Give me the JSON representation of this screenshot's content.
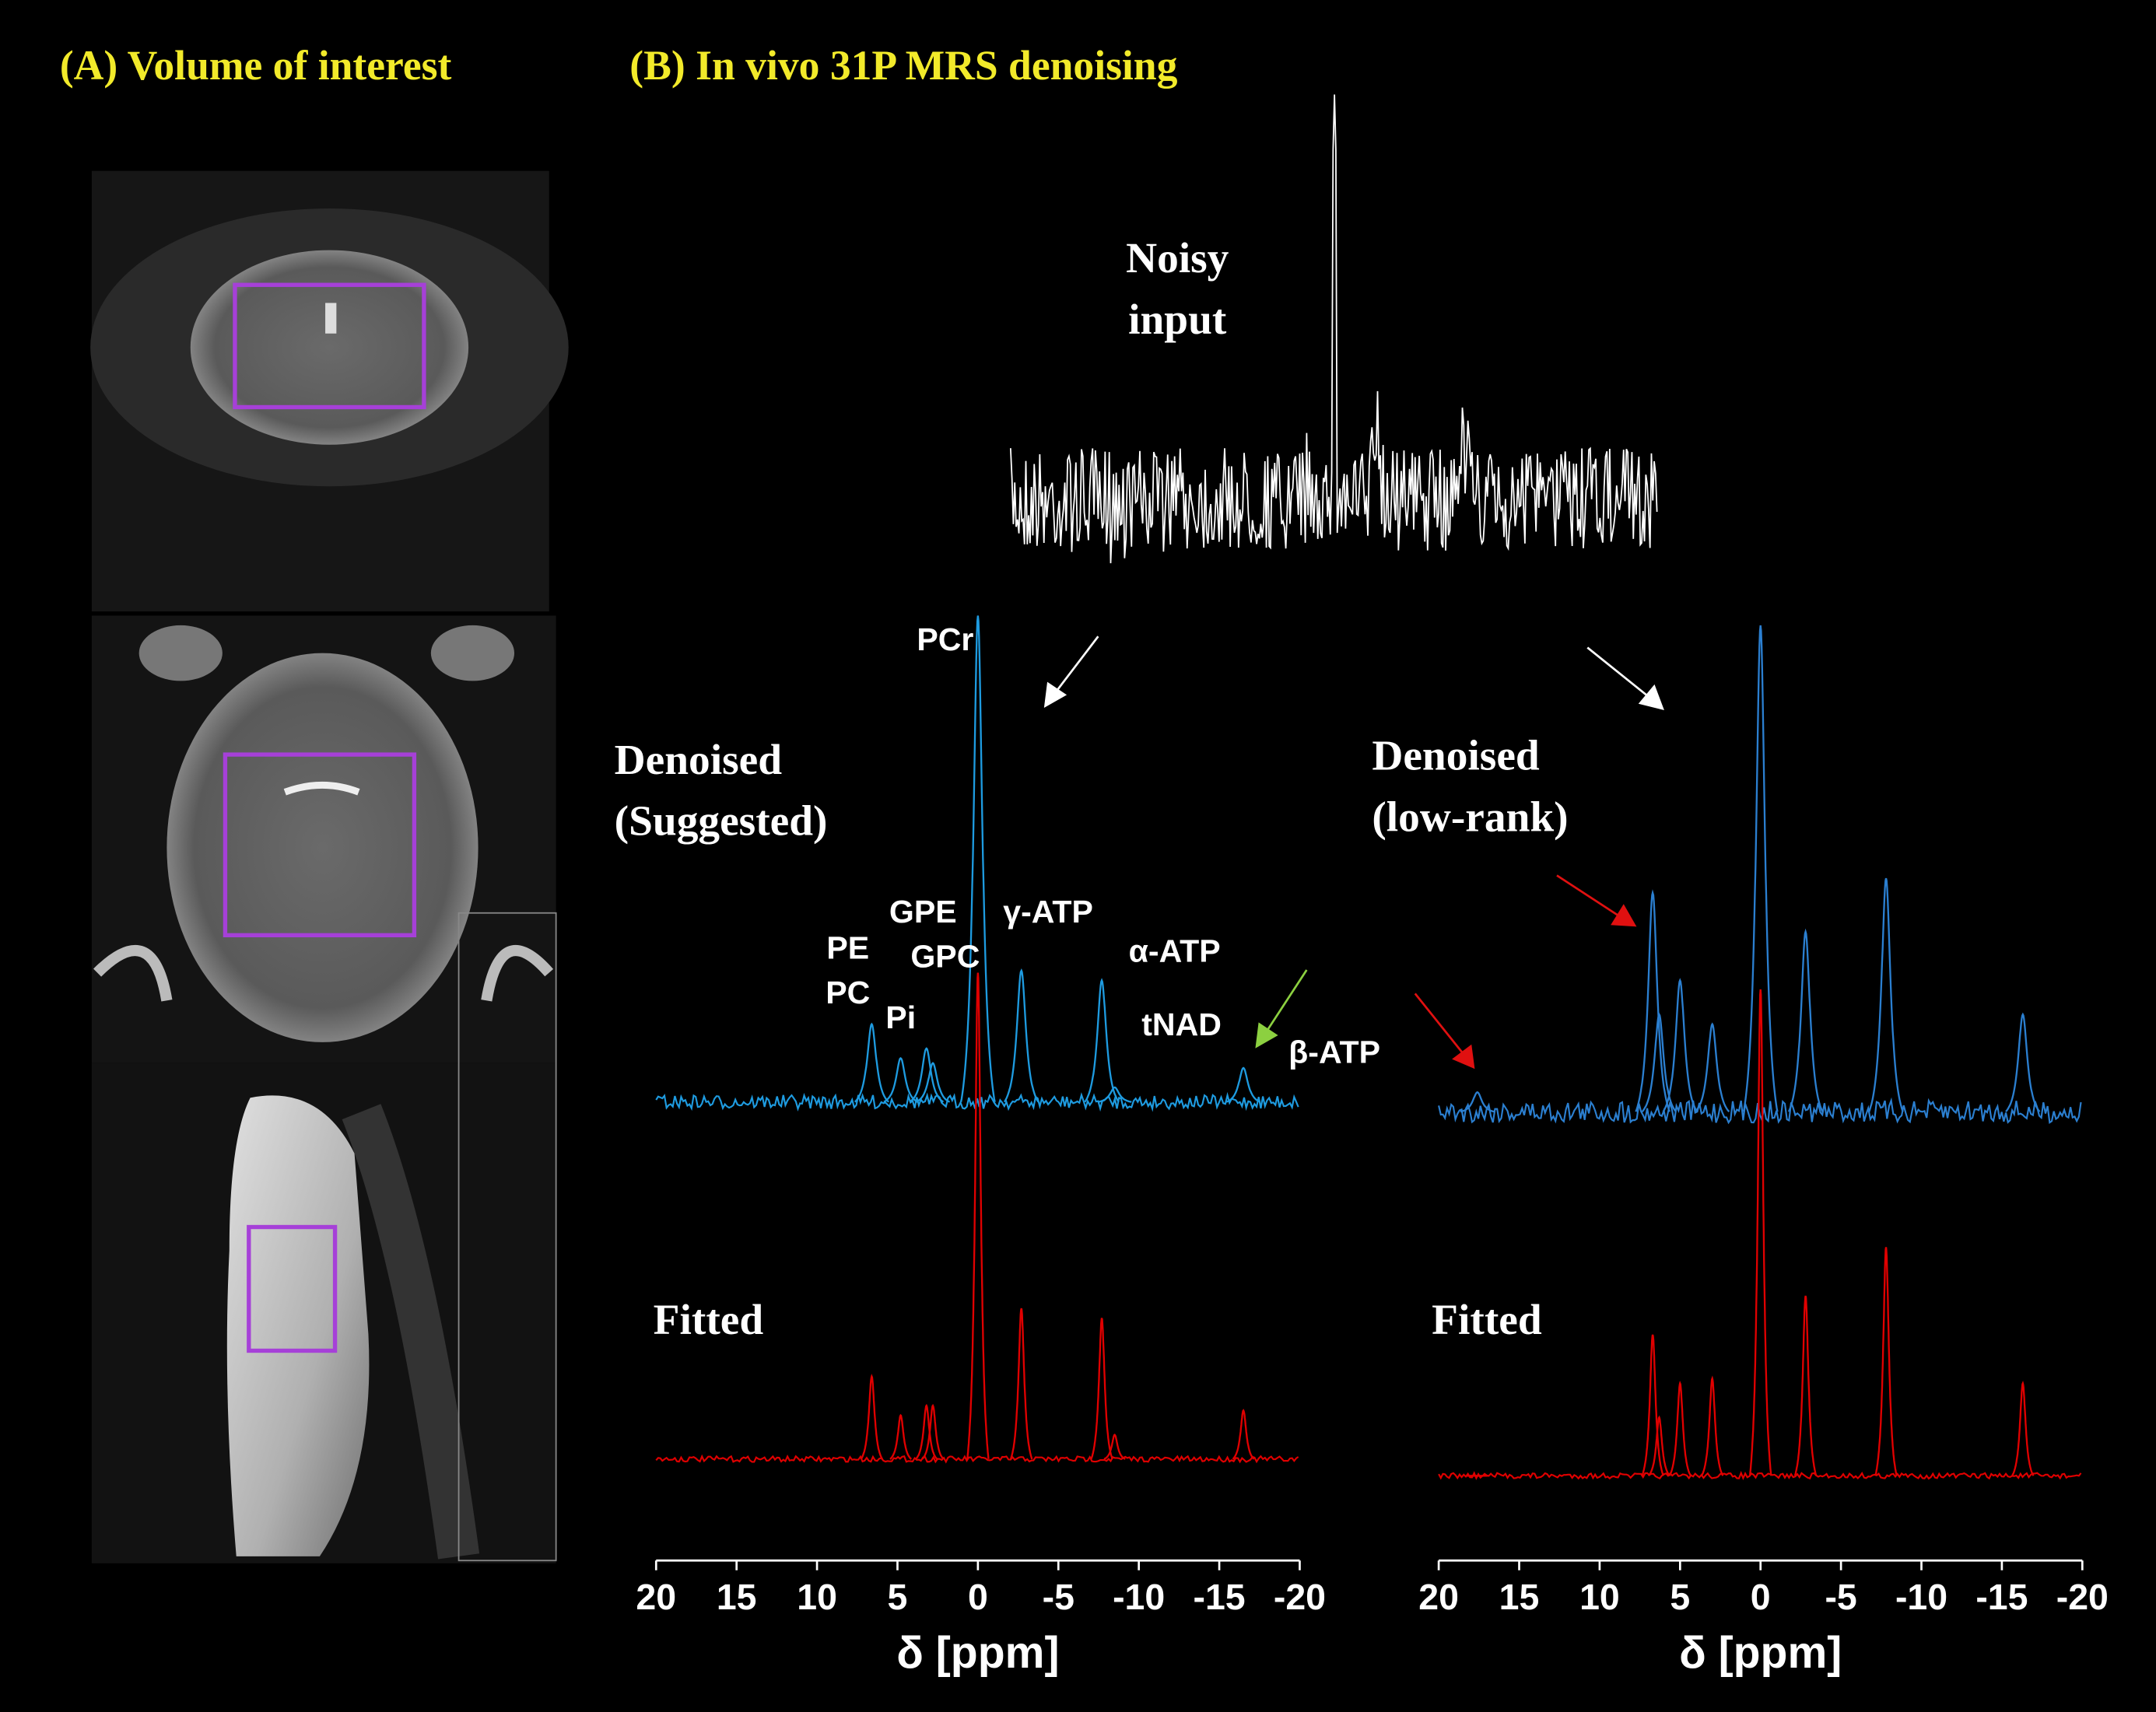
{
  "header": {
    "title_a": "(A) Volume of interest",
    "title_b": "(B) In vivo 31P MRS denoising"
  },
  "noisy_input": [
    "Noisy",
    "input"
  ],
  "chart_data": [
    {
      "type": "line",
      "labels": {
        "denoised": [
          "Denoised",
          "(Suggested)"
        ],
        "fitted": "Fitted"
      },
      "x": [
        6.6,
        4.8,
        3.2,
        2.8,
        0,
        -2.7,
        -7.7,
        -8.5,
        -16.5
      ],
      "series": [
        {
          "color": "#1e9be0",
          "values": [
            16,
            9,
            11,
            8,
            100,
            27,
            25,
            3,
            7
          ]
        },
        {
          "color": "#e00000",
          "values": [
            17,
            9,
            11,
            11,
            100,
            31,
            29,
            5,
            10
          ]
        }
      ],
      "annotations": [
        "PE",
        "PC",
        "Pi",
        "GPE",
        "GPC",
        "PCr",
        "γ-ATP",
        "α-ATP",
        "tNAD",
        "β-ATP"
      ],
      "xlim": [
        20,
        -20
      ],
      "xticks": [
        20,
        15,
        10,
        5,
        0,
        -5,
        -10,
        -15,
        -20
      ],
      "xlabel": "δ [ppm]"
    },
    {
      "type": "line",
      "labels": {
        "denoised": [
          "Denoised",
          "(low-rank)"
        ],
        "fitted": "Fitted"
      },
      "x": [
        17.6,
        6.7,
        6.3,
        5.0,
        3.0,
        0,
        -2.8,
        -7.8,
        -16.3
      ],
      "series": [
        {
          "color": "#2b7fd0",
          "values": [
            4,
            45,
            20,
            27,
            18,
            100,
            37,
            48,
            20
          ]
        },
        {
          "color": "#e00000",
          "values": [
            0,
            29,
            12,
            19,
            20,
            100,
            37,
            47,
            19
          ]
        }
      ],
      "xlim": [
        20,
        -20
      ],
      "xticks": [
        20,
        15,
        10,
        5,
        0,
        -5,
        -10,
        -15,
        -20
      ],
      "xlabel": "δ [ppm]"
    }
  ]
}
